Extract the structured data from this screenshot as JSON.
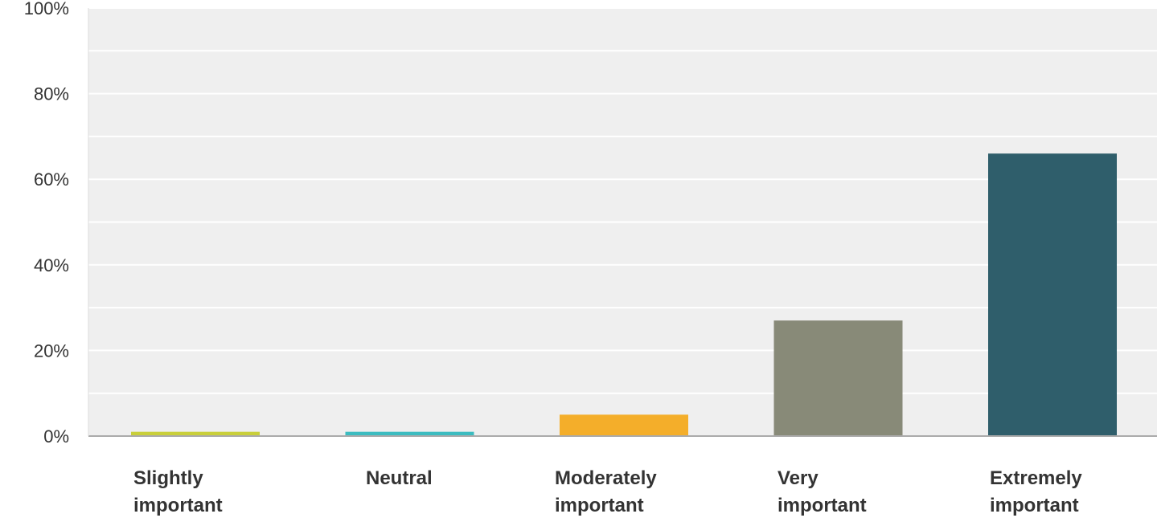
{
  "chart_data": {
    "type": "bar",
    "title": "",
    "xlabel": "",
    "ylabel": "",
    "ylim": [
      0,
      100
    ],
    "y_ticks": [
      "0%",
      "20%",
      "40%",
      "60%",
      "80%",
      "100%"
    ],
    "grid": true,
    "legend": "none",
    "categories": [
      [
        "Slightly",
        "important"
      ],
      [
        "Neutral"
      ],
      [
        "Moderately",
        "important"
      ],
      [
        "Very",
        "important"
      ],
      [
        "Extremely",
        "important"
      ]
    ],
    "values": [
      1,
      1,
      5,
      27,
      66
    ],
    "colors": [
      "#c9cf3a",
      "#3cbcc0",
      "#f4ae2a",
      "#888a78",
      "#2f5e6b"
    ],
    "plot_background": "#efefef",
    "gridline_color": "#ffffff",
    "axis_color": "#aaaaaa"
  }
}
